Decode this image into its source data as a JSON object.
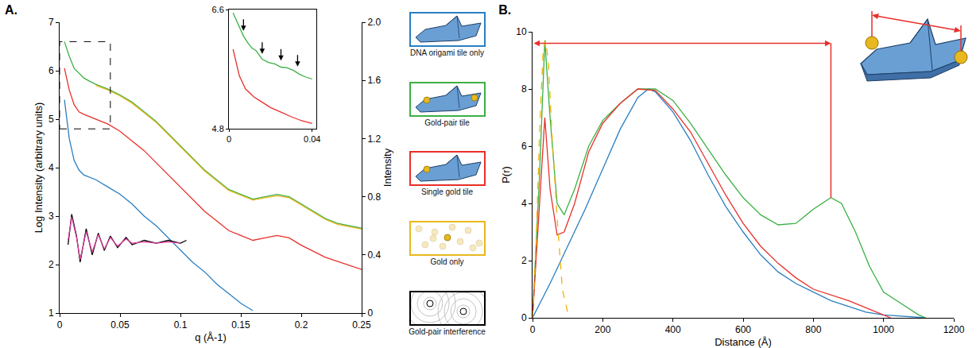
{
  "chart_data": [
    {
      "type": "line",
      "title": "A.",
      "x_label": "q (Å-1)",
      "y_label": "Log Intensity (arbitrary units)",
      "y2_label": "Intensity",
      "xlim": [
        0,
        0.25
      ],
      "xticks": [
        0,
        0.05,
        0.1,
        0.15,
        0.2,
        0.25
      ],
      "ylim": [
        1,
        7
      ],
      "yticks": [
        1,
        2,
        3,
        4,
        5,
        6,
        7
      ],
      "y2lim": [
        0,
        2
      ],
      "y2ticks": [
        0,
        0.4,
        0.8,
        1.2,
        1.6,
        {
          "value": 2,
          "label": "2.0"
        }
      ],
      "grid": false,
      "legend": "right",
      "series": [
        {
          "name": "DNA origami tile only",
          "color": "#2a7fc1",
          "x": [
            0.004,
            0.008,
            0.012,
            0.016,
            0.02,
            0.03,
            0.04,
            0.05,
            0.06,
            0.07,
            0.08,
            0.09,
            0.1,
            0.11,
            0.12,
            0.13,
            0.14,
            0.15,
            0.16
          ],
          "values": [
            5.4,
            4.6,
            4.15,
            3.95,
            3.85,
            3.75,
            3.6,
            3.45,
            3.25,
            3.0,
            2.8,
            2.55,
            2.3,
            2.05,
            1.85,
            1.6,
            1.4,
            1.2,
            1.05
          ]
        },
        {
          "name": "Gold-pair tile",
          "color": "#3cb043",
          "x": [
            0.004,
            0.008,
            0.012,
            0.016,
            0.02,
            0.025,
            0.03,
            0.04,
            0.05,
            0.06,
            0.07,
            0.08,
            0.09,
            0.1,
            0.11,
            0.12,
            0.13,
            0.14,
            0.15,
            0.16,
            0.17,
            0.18,
            0.19,
            0.2,
            0.21,
            0.22,
            0.23,
            0.24,
            0.25
          ],
          "values": [
            6.6,
            6.3,
            6.05,
            5.95,
            5.85,
            5.78,
            5.72,
            5.62,
            5.5,
            5.35,
            5.15,
            4.95,
            4.7,
            4.45,
            4.2,
            3.95,
            3.75,
            3.55,
            3.45,
            3.35,
            3.4,
            3.45,
            3.4,
            3.25,
            3.1,
            2.95,
            2.85,
            2.8,
            2.75
          ]
        },
        {
          "name": "Single gold tile",
          "color": "#e8302a",
          "x": [
            0.004,
            0.008,
            0.012,
            0.016,
            0.02,
            0.03,
            0.04,
            0.05,
            0.06,
            0.07,
            0.08,
            0.09,
            0.1,
            0.11,
            0.12,
            0.13,
            0.14,
            0.15,
            0.16,
            0.17,
            0.18,
            0.19,
            0.2,
            0.22,
            0.25
          ],
          "values": [
            6.05,
            5.6,
            5.3,
            5.15,
            5.1,
            5.0,
            4.9,
            4.75,
            4.55,
            4.35,
            4.1,
            3.85,
            3.6,
            3.35,
            3.1,
            2.9,
            2.7,
            2.6,
            2.5,
            2.55,
            2.6,
            2.55,
            2.4,
            2.15,
            1.9
          ]
        },
        {
          "name": "Gold only",
          "color": "#e8b820",
          "x": [
            0.03,
            0.04,
            0.05,
            0.06,
            0.07,
            0.08,
            0.09,
            0.1,
            0.11,
            0.12,
            0.13,
            0.14,
            0.15,
            0.16,
            0.17,
            0.18,
            0.19,
            0.2,
            0.21,
            0.22,
            0.23,
            0.24,
            0.25
          ],
          "values": [
            5.7,
            5.6,
            5.48,
            5.33,
            5.13,
            4.93,
            4.68,
            4.43,
            4.18,
            3.93,
            3.73,
            3.53,
            3.43,
            3.33,
            3.38,
            3.42,
            3.38,
            3.23,
            3.08,
            2.93,
            2.83,
            2.78,
            2.73
          ]
        },
        {
          "name": "Gold-pair interference",
          "color": "#000000",
          "axis": "y2",
          "x": [
            0.007,
            0.01,
            0.014,
            0.017,
            0.022,
            0.027,
            0.032,
            0.037,
            0.042,
            0.048,
            0.055,
            0.06,
            0.07,
            0.08,
            0.09,
            0.1,
            0.105
          ],
          "values": [
            0.47,
            0.68,
            0.53,
            0.35,
            0.58,
            0.4,
            0.55,
            0.43,
            0.53,
            0.45,
            0.52,
            0.47,
            0.5,
            0.48,
            0.5,
            0.48,
            0.5
          ]
        },
        {
          "color": "#e040a0",
          "axis": "y2",
          "x": [
            0.007,
            0.01,
            0.014,
            0.017,
            0.022,
            0.027,
            0.032,
            0.037,
            0.042,
            0.048,
            0.055,
            0.06,
            0.07,
            0.08,
            0.09,
            0.1
          ],
          "values": [
            0.5,
            0.66,
            0.52,
            0.37,
            0.56,
            0.42,
            0.54,
            0.44,
            0.52,
            0.46,
            0.51,
            0.48,
            0.49,
            0.48,
            0.49,
            0.48
          ]
        }
      ]
    },
    {
      "type": "line",
      "xlim": [
        0,
        0.042
      ],
      "xticks": [
        0,
        0.04
      ],
      "ylim": [
        4.8,
        6.6
      ],
      "yticks": [
        4.8,
        6.6
      ],
      "grid": false,
      "arrows": [
        {
          "x": 0.007,
          "y": 6.28
        },
        {
          "x": 0.016,
          "y": 5.93
        },
        {
          "x": 0.025,
          "y": 5.83
        },
        {
          "x": 0.033,
          "y": 5.74
        }
      ],
      "series": [
        {
          "color": "#3cb043",
          "x": [
            0.002,
            0.005,
            0.007,
            0.009,
            0.011,
            0.013,
            0.016,
            0.019,
            0.022,
            0.025,
            0.028,
            0.031,
            0.034,
            0.037,
            0.04
          ],
          "values": [
            6.55,
            6.35,
            6.2,
            6.1,
            6.02,
            5.98,
            5.85,
            5.8,
            5.78,
            5.73,
            5.72,
            5.68,
            5.62,
            5.58,
            5.55
          ]
        },
        {
          "color": "#e8302a",
          "x": [
            0.002,
            0.005,
            0.008,
            0.012,
            0.016,
            0.02,
            0.025,
            0.03,
            0.035,
            0.04
          ],
          "values": [
            6.0,
            5.6,
            5.4,
            5.28,
            5.2,
            5.12,
            5.05,
            4.98,
            4.92,
            4.88
          ]
        }
      ]
    },
    {
      "type": "line",
      "title": "B.",
      "x_label": "Distance (Å)",
      "y_label": "P(r)",
      "xlim": [
        0,
        1200
      ],
      "xticks": [
        0,
        200,
        400,
        600,
        800,
        1000,
        1200
      ],
      "ylim": [
        0,
        10
      ],
      "yticks": [
        0,
        2,
        4,
        6,
        8,
        10
      ],
      "grid": false,
      "arrow": {
        "x": [
          0,
          850
        ],
        "y": 9.6,
        "drop_to": 4.2,
        "color": "#e8302a"
      },
      "series": [
        {
          "color": "#2a7fc1",
          "x": [
            0,
            50,
            100,
            150,
            200,
            250,
            300,
            330,
            350,
            400,
            450,
            500,
            550,
            600,
            650,
            700,
            750,
            800,
            850,
            900,
            950,
            1000,
            1050,
            1120
          ],
          "values": [
            0,
            1.2,
            2.5,
            3.8,
            5.2,
            6.6,
            7.7,
            8.0,
            7.9,
            7.2,
            6.2,
            5.0,
            3.9,
            3.0,
            2.2,
            1.6,
            1.2,
            0.9,
            0.6,
            0.4,
            0.2,
            0.1,
            0.05,
            0
          ]
        },
        {
          "color": "#3cb043",
          "x": [
            0,
            20,
            35,
            50,
            70,
            90,
            120,
            160,
            200,
            250,
            300,
            350,
            400,
            450,
            500,
            550,
            600,
            650,
            700,
            750,
            800,
            850,
            880,
            920,
            960,
            1000,
            1050,
            1100,
            1120
          ],
          "values": [
            0,
            5,
            9.7,
            7,
            4.0,
            3.6,
            4.5,
            6,
            6.9,
            7.5,
            8.0,
            8.0,
            7.6,
            6.8,
            5.9,
            5.0,
            4.2,
            3.6,
            3.25,
            3.3,
            3.8,
            4.2,
            4.0,
            3.0,
            1.8,
            0.9,
            0.5,
            0.1,
            0
          ]
        },
        {
          "color": "#e8302a",
          "x": [
            0,
            20,
            35,
            50,
            70,
            90,
            120,
            160,
            200,
            250,
            300,
            350,
            400,
            450,
            500,
            550,
            600,
            650,
            700,
            750,
            800,
            850,
            900,
            950,
            1000,
            1020
          ],
          "values": [
            0,
            4,
            7.0,
            4.5,
            2.9,
            3.0,
            4.0,
            5.8,
            6.8,
            7.5,
            8.0,
            7.95,
            7.3,
            6.5,
            5.4,
            4.3,
            3.3,
            2.5,
            1.9,
            1.4,
            1.0,
            0.8,
            0.6,
            0.35,
            0.1,
            0
          ]
        },
        {
          "color": "#f0b400",
          "line_style": "dash",
          "x": [
            0,
            10,
            20,
            30,
            37,
            45,
            55,
            70,
            85,
            100,
            110
          ],
          "values": [
            0,
            2.5,
            6.5,
            9.3,
            9.7,
            9.0,
            6.5,
            3.5,
            1.0,
            0.2,
            0
          ]
        }
      ]
    }
  ]
}
